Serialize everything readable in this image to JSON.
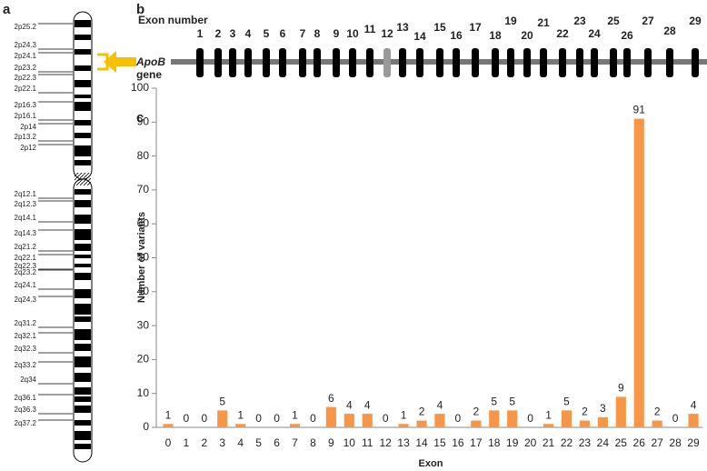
{
  "panels": {
    "a": "a",
    "b": "b",
    "c": "c"
  },
  "ideogram": {
    "bands": [
      "2p25.2",
      "2p24.3",
      "2p24.1",
      "2p23.2",
      "2p22.3",
      "2p22.1",
      "2p16.3",
      "2p16.1",
      "2p14",
      "2p13.2",
      "2p12",
      "2q12.1",
      "2q12.3",
      "2q14.1",
      "2q14.3",
      "2q21.2",
      "2q22.1",
      "2q22.3",
      "2q23.2",
      "2q24.1",
      "2q24.3",
      "2q31.2",
      "2q32.1",
      "2q32.3",
      "2q33.2",
      "2q34",
      "2q36.1",
      "2q36.3",
      "2q37.2"
    ]
  },
  "gene": {
    "exon_label": "Exon number",
    "gene_name": "ApoB",
    "gene_word": "gene",
    "exons": [
      "1",
      "2",
      "3",
      "4",
      "5",
      "6",
      "7",
      "8",
      "9",
      "10",
      "11",
      "12",
      "13",
      "14",
      "15",
      "16",
      "17",
      "18",
      "19",
      "20",
      "21",
      "22",
      "23",
      "24",
      "25",
      "26",
      "27",
      "28",
      "29"
    ]
  },
  "chart_data": {
    "type": "bar",
    "x_label": "Exon",
    "y_label": "Number of variants",
    "categories": [
      "0",
      "1",
      "2",
      "3",
      "4",
      "5",
      "6",
      "7",
      "8",
      "9",
      "10",
      "11",
      "12",
      "13",
      "14",
      "15",
      "16",
      "17",
      "18",
      "19",
      "20",
      "21",
      "22",
      "23",
      "24",
      "25",
      "26",
      "27",
      "28",
      "29"
    ],
    "values": [
      1,
      0,
      0,
      5,
      1,
      0,
      0,
      1,
      0,
      6,
      4,
      4,
      0,
      1,
      2,
      4,
      0,
      2,
      5,
      5,
      0,
      1,
      5,
      2,
      3,
      9,
      91,
      2,
      0,
      4
    ],
    "color": "#f79646",
    "ylim": [
      0,
      100
    ],
    "yticks": [
      0,
      10,
      20,
      30,
      40,
      50,
      60,
      70,
      80,
      90,
      100
    ]
  }
}
